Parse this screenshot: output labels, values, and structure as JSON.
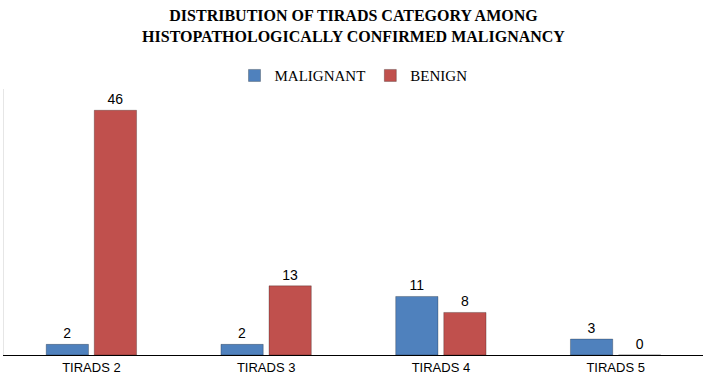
{
  "chart_data": {
    "type": "bar",
    "title": "DISTRIBUTION OF TIRADS CATEGORY AMONG\nHISTOPATHOLOGICALLY CONFIRMED MALIGNANCY",
    "categories": [
      "TIRADS 2",
      "TIRADS 3",
      "TIRADS 4",
      "TIRADS 5"
    ],
    "series": [
      {
        "name": "MALIGNANT",
        "color": "#4f81bd",
        "values": [
          2,
          2,
          11,
          3
        ]
      },
      {
        "name": "BENIGN",
        "color": "#c0504d",
        "values": [
          46,
          13,
          8,
          0
        ]
      }
    ],
    "ylim": [
      0,
      50
    ],
    "grid": false,
    "legend": "top",
    "data_labels": true,
    "tick_labels": "x"
  }
}
